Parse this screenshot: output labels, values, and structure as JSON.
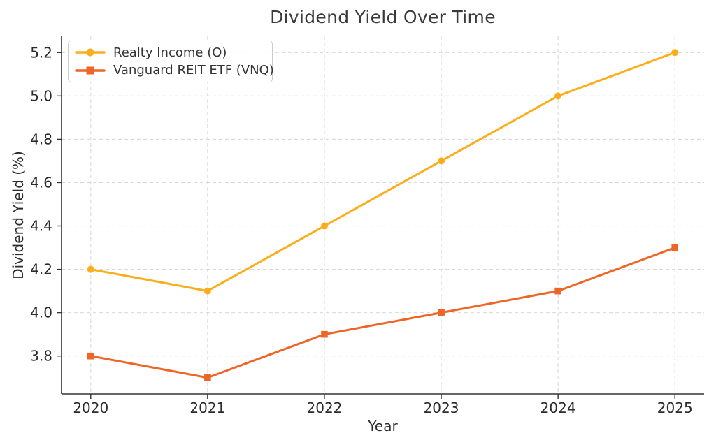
{
  "figure": {
    "background": "#ffffff"
  },
  "chart_data": {
    "type": "line",
    "title": "Dividend Yield Over Time",
    "xlabel": "Year",
    "ylabel": "Dividend Yield (%)",
    "x": [
      2020,
      2021,
      2022,
      2023,
      2024,
      2025
    ],
    "series": [
      {
        "name": "Realty Income (O)",
        "marker": "circle",
        "color": "#FBAD1B",
        "values": [
          4.2,
          4.1,
          4.4,
          4.7,
          5.0,
          5.2
        ]
      },
      {
        "name": "Vanguard REIT ETF (VNQ)",
        "marker": "square",
        "color": "#EE6528",
        "values": [
          3.8,
          3.7,
          3.9,
          4.0,
          4.1,
          4.3
        ]
      }
    ],
    "yticks": [
      3.8,
      4.0,
      4.2,
      4.4,
      4.6,
      4.8,
      5.0,
      5.2
    ],
    "xlim": [
      2019.75,
      2025.25
    ],
    "ylim": [
      3.625,
      5.275
    ],
    "grid": true,
    "grid_style": "dashed",
    "legend_position": "upper left",
    "colors": {
      "grid": "#d9d9d9",
      "spine": "#333333",
      "text": "#2b2b2b",
      "legend_border": "#cccccc"
    }
  }
}
